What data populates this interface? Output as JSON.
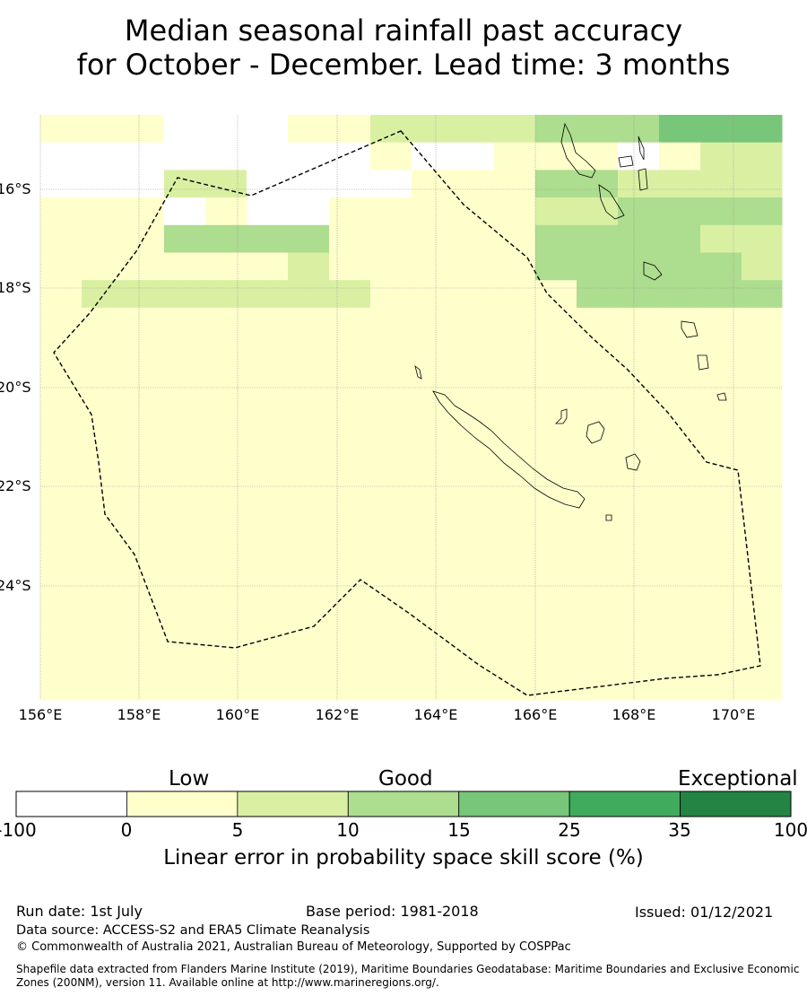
{
  "title": {
    "line1": "Median seasonal rainfall past accuracy",
    "line2": "for October - December. Lead time: 3 months"
  },
  "map": {
    "lat_labels": [
      "16°S",
      "18°S",
      "20°S",
      "22°S",
      "24°S"
    ],
    "lon_labels": [
      "156°E",
      "158°E",
      "160°E",
      "162°E",
      "164°E",
      "166°E",
      "168°E",
      "170°E"
    ],
    "lon_range": [
      156,
      171
    ],
    "lat_range": [
      -14.8,
      -26.6
    ],
    "grid": "dotted",
    "boundary": "dashed maritime boundary (EEZ)",
    "colors": [
      "#ffffff",
      "#ffffcc",
      "#d9f0a3",
      "#addd8e",
      "#78c679",
      "#41ab5d",
      "#238443"
    ],
    "cells": [
      "1111111111000000000001111111122222222222222223333333333334444444444443",
      "000000001010101010000000000010101000000000111111111000011112222122000",
      "001010102222222222200000000000011111111111121133332222222222222222222",
      "11010001000000011100000111111111111111222112222222223333333333333333",
      "11111111113333333333333333111111111111111112233333333333322222222222",
      "11111111111111111111222221111111111111111112233333333333333332222222",
      "1112222222222222222222222221111111111111111111133333333333333333333",
      "11111111111111111111111111111111111111111111111111111111111111111111",
      "1111111111111111111111111111111111111111111111111111111111111111111",
      "1111111111111111111111111111111111111111111111111111111111111111111",
      "1111111111111111111111111111111111111111111111111111111111111111111",
      "1111111111111111111111111111111111111111111111111111111111111111111",
      "1111111111111111111111111111111111111111111111111111111111111111111",
      "1111111111111111111111111111111111111111111111111111111111111111111",
      "1111111111111111111111111111111111111111111111111111111111111111111",
      "1111111111111111111111111111111111111111111111111111111111111111111",
      "1111111111111111111111111111111111111111111111111111111111111111111",
      "1111111111111111111111111111111111111111111111111111111111111111111",
      "1111111111111111111111111111111111111111111111111111111111111111111",
      "1111111111111111111111111111111111111111111111111111111111111111111",
      "1111111111111111111111111111111111111111111111111111111111111111111",
      "1111111111111111111111111111111111111111111111111111111111111111111"
    ]
  },
  "colorbar": {
    "categories": [
      "Low",
      "Good",
      "Exceptional"
    ],
    "ticks": [
      "-100",
      "0",
      "5",
      "10",
      "15",
      "25",
      "35",
      "100"
    ],
    "colors": [
      "#ffffff",
      "#ffffcc",
      "#d9f0a3",
      "#addd8e",
      "#78c679",
      "#41ab5d",
      "#238443"
    ],
    "title": "Linear error in probability space skill score (%)"
  },
  "footer": {
    "run_date": "Run date: 1st July",
    "base_period": "Base period: 1981-2018",
    "issued": "Issued: 01/12/2021",
    "data_source": "Data source: ACCESS-S2 and ERA5 Climate Reanalysis",
    "copyright": "© Commonwealth of Australia 2021, Australian Bureau of Meteorology, Supported by COSPPac",
    "shapefile": "Shapefile data extracted from Flanders Marine Institute (2019), Maritime Boundaries Geodatabase: Maritime Boundaries and Exclusive Economic Zones (200NM), version 11. Available online at http://www.marineregions.org/."
  }
}
